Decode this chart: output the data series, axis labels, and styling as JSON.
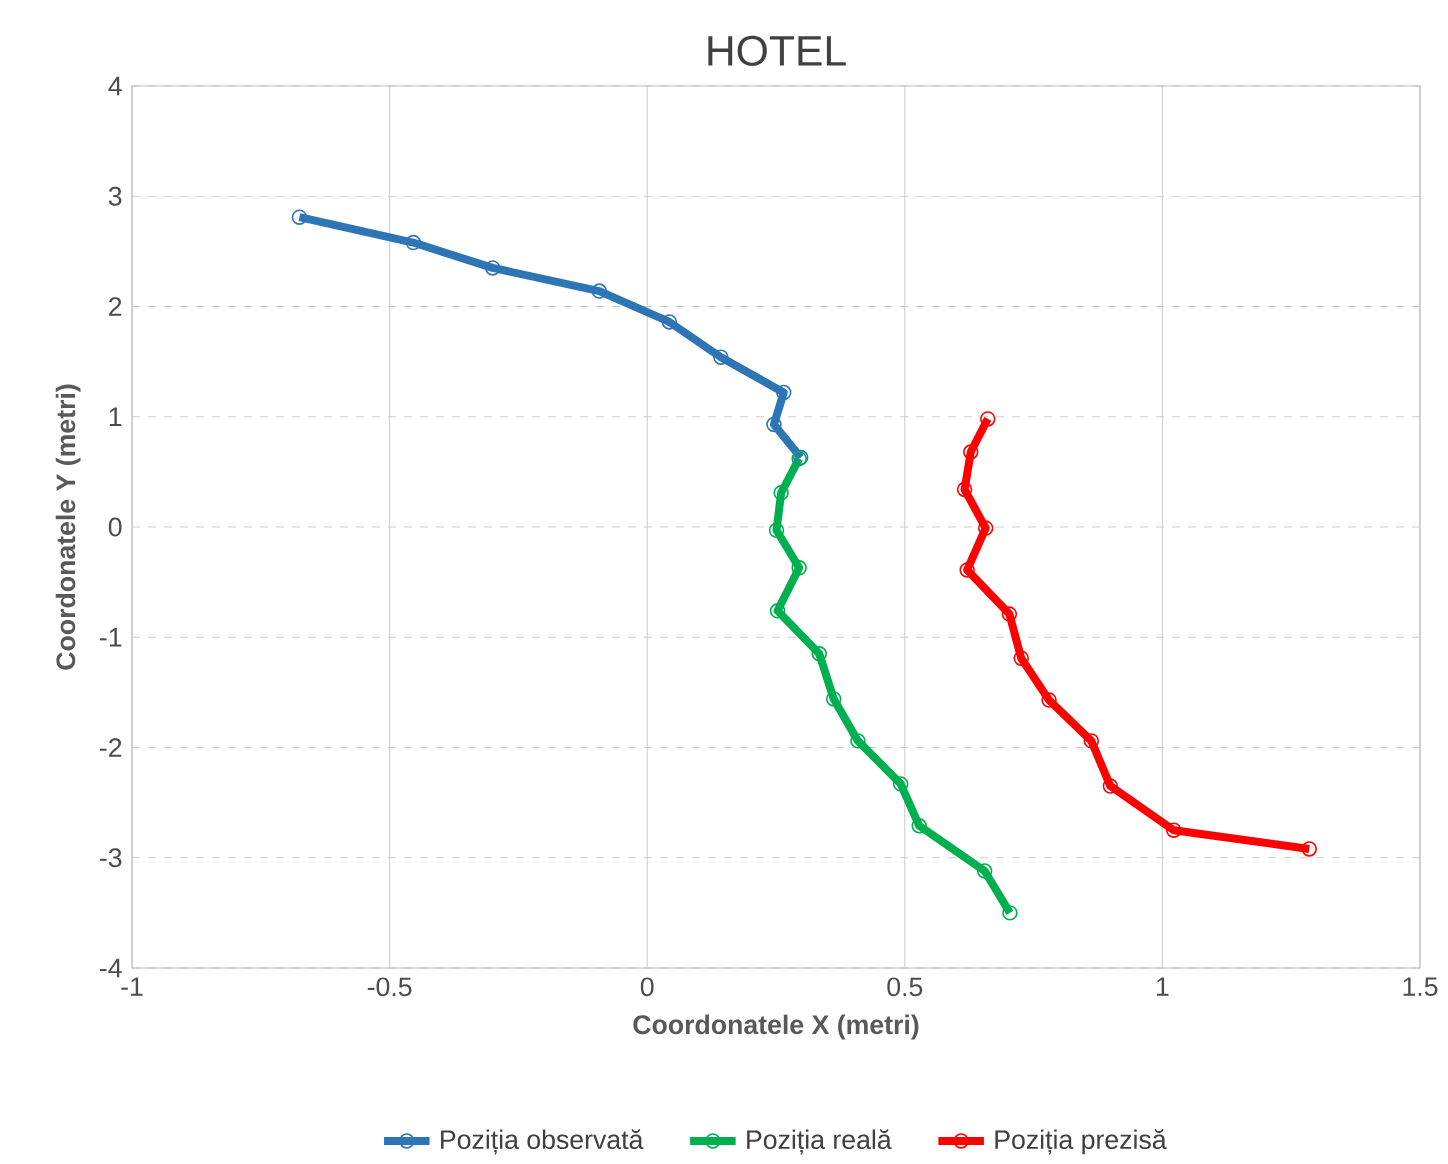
{
  "chart_data": {
    "type": "line",
    "title": "HOTEL",
    "xlabel": "Coordonatele X (metri)",
    "ylabel": "Coordonatele Y (metri)",
    "xlim": [
      -1,
      1.5
    ],
    "xticks": [
      -1,
      -0.5,
      0,
      0.5,
      1,
      1.5
    ],
    "ylim": [
      -4,
      4
    ],
    "yticks": [
      -4,
      -3,
      -2,
      -1,
      0,
      1,
      2,
      3,
      4
    ],
    "grid": true,
    "legend": "bottom",
    "marker": "circle",
    "line_style": "solid",
    "series": [
      {
        "name": "Poziția observată",
        "color": "#2e75b6",
        "x": [
          -0.675,
          -0.454,
          -0.3,
          -0.093,
          0.043,
          0.143,
          0.265,
          0.246,
          0.298
        ],
        "values": [
          2.81,
          2.58,
          2.35,
          2.14,
          1.86,
          1.54,
          1.22,
          0.93,
          0.63
        ]
      },
      {
        "name": "Poziția reală",
        "color": "#00b050",
        "x": [
          0.295,
          0.26,
          0.251,
          0.295,
          0.253,
          0.334,
          0.362,
          0.409,
          0.492,
          0.528,
          0.655,
          0.704
        ],
        "values": [
          0.62,
          0.31,
          -0.03,
          -0.37,
          -0.76,
          -1.15,
          -1.56,
          -1.94,
          -2.33,
          -2.71,
          -3.12,
          -3.5
        ]
      },
      {
        "name": "Poziția prezisă",
        "color": "#ff0000",
        "x": [
          0.661,
          0.628,
          0.616,
          0.657,
          0.621,
          0.703,
          0.726,
          0.78,
          0.862,
          0.899,
          1.022,
          1.285
        ],
        "values": [
          0.98,
          0.68,
          0.34,
          -0.01,
          -0.39,
          -0.79,
          -1.19,
          -1.57,
          -1.94,
          -2.35,
          -2.75,
          -2.92
        ]
      }
    ]
  }
}
